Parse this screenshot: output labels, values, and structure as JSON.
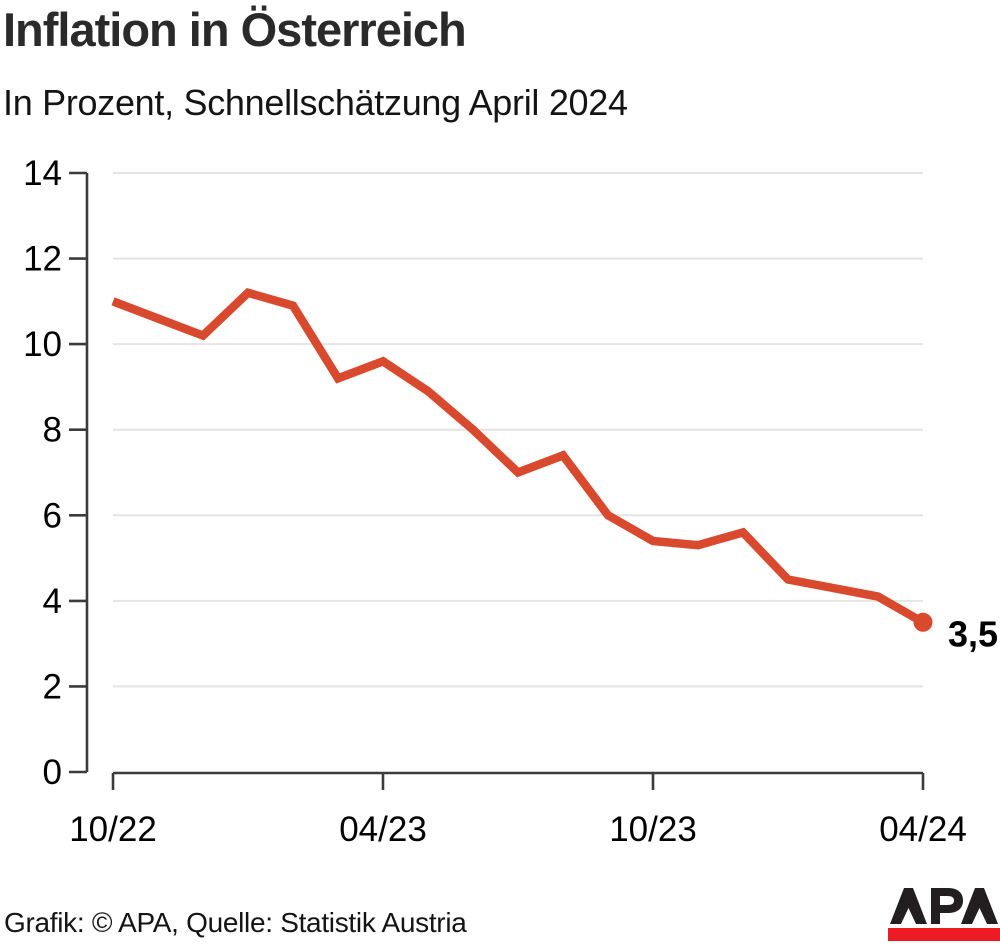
{
  "header": {
    "title": "Inflation in Österreich",
    "subtitle": "In Prozent, Schnellschätzung April 2024"
  },
  "chart_data": {
    "type": "line",
    "title": "Inflation in Österreich",
    "subtitle": "In Prozent, Schnellschätzung April 2024",
    "unit": "Prozent",
    "x": [
      "10/22",
      "11/22",
      "12/22",
      "01/23",
      "02/23",
      "03/23",
      "04/23",
      "05/23",
      "06/23",
      "07/23",
      "08/23",
      "09/23",
      "10/23",
      "11/23",
      "12/23",
      "01/24",
      "02/24",
      "03/24",
      "04/24"
    ],
    "values": [
      11.0,
      10.6,
      10.2,
      11.2,
      10.9,
      9.2,
      9.6,
      8.9,
      8.0,
      7.0,
      7.4,
      6.0,
      5.4,
      5.3,
      5.6,
      4.5,
      4.3,
      4.1,
      3.5
    ],
    "x_tick_labels": [
      "10/22",
      "04/23",
      "10/23",
      "04/24"
    ],
    "x_tick_indices": [
      0,
      6,
      12,
      18
    ],
    "y_ticks": [
      0,
      2,
      4,
      6,
      8,
      10,
      12,
      14
    ],
    "ylim": [
      0,
      14
    ],
    "grid": true,
    "legend": "none",
    "line_color": "#d8492e",
    "grid_color": "#e4e4e4",
    "axis_color": "#3b3b3b",
    "label_color": "#000000",
    "end_point_label": "3,5"
  },
  "footer": {
    "credit": "Grafik: © APA, Quelle: Statistik Austria",
    "logo_text": "APA",
    "logo_letter_color": "#231f20",
    "logo_bar_color": "#ed1c24"
  }
}
